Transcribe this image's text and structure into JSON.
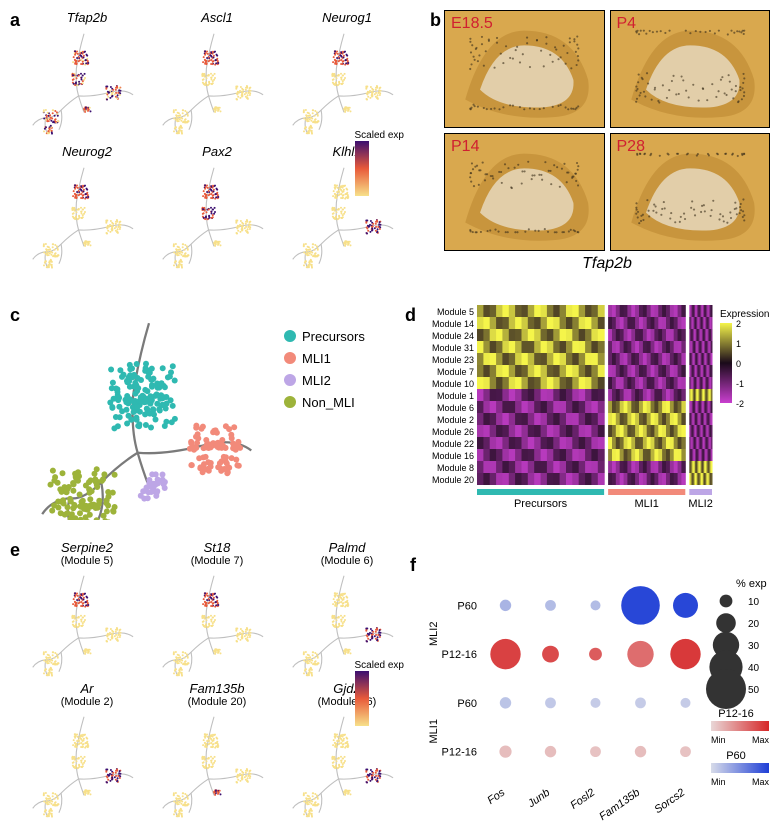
{
  "panel_a": {
    "label": "a",
    "genes": [
      "Tfap2b",
      "Ascl1",
      "Neurog1",
      "Neurog2",
      "Pax2",
      "Klhl1"
    ],
    "gene_high_branch": [
      "all",
      "top",
      "top",
      "top",
      "upper",
      "right"
    ],
    "legend_label": "Scaled exp",
    "colormap_low": "#f7e08a",
    "colormap_mid": "#e85a3a",
    "colormap_high": "#3b0f70",
    "skeleton_color": "#bfbfbf",
    "title_fontsize": 13
  },
  "panel_b": {
    "label": "b",
    "stages": [
      "E18.5",
      "P4",
      "P14",
      "P28"
    ],
    "gene": "Tfap2b",
    "border_color": "#000000",
    "bg_color": "#d9a84e",
    "ish_ink": "#3a2f1a",
    "label_color": "#d02030",
    "label_fontsize": 16
  },
  "panel_c": {
    "label": "c",
    "categories": [
      {
        "name": "Precursors",
        "color": "#2fb9b1"
      },
      {
        "name": "MLI1",
        "color": "#f28a7a"
      },
      {
        "name": "MLI2",
        "color": "#bda6e6"
      },
      {
        "name": "Non_MLI",
        "color": "#9db33a"
      }
    ],
    "skeleton_color": "#7a7a7a",
    "legend_fontsize": 13
  },
  "panel_d": {
    "label": "d",
    "modules": [
      "Module 5",
      "Module 14",
      "Module 24",
      "Module 31",
      "Module 23",
      "Module 7",
      "Module 10",
      "Module 1",
      "Module 6",
      "Module 2",
      "Module 26",
      "Module 22",
      "Module 16",
      "Module 8",
      "Module 20"
    ],
    "columns": [
      "Precursors",
      "MLI1",
      "MLI2"
    ],
    "column_colors": {
      "Precursors": "#2fb9b1",
      "MLI1": "#f28a7a",
      "MLI2": "#bda6e6"
    },
    "column_widths": [
      0.56,
      0.34,
      0.1
    ],
    "legend_label": "Expression",
    "cmap_low": "#c93fcf",
    "cmap_mid": "#1a0a1a",
    "cmap_high": "#f5f54a",
    "scale_ticks": [
      2,
      1,
      0,
      -1,
      -2
    ],
    "module_high_col": [
      0,
      0,
      0,
      0,
      0,
      0,
      0,
      2,
      1,
      1,
      1,
      1,
      1,
      2,
      2
    ],
    "label_fontsize": 9
  },
  "panel_e": {
    "label": "e",
    "items": [
      {
        "gene": "Serpine2",
        "module": "(Module 5)",
        "high": "top"
      },
      {
        "gene": "St18",
        "module": "(Module 7)",
        "high": "top"
      },
      {
        "gene": "Palmd",
        "module": "(Module 6)",
        "high": "right"
      },
      {
        "gene": "Ar",
        "module": "(Module 2)",
        "high": "right"
      },
      {
        "gene": "Fam135b",
        "module": "(Module 20)",
        "high": "rightdot"
      },
      {
        "gene": "Gjd2",
        "module": "(Module 26)",
        "high": "right"
      }
    ],
    "legend_label": "Scaled exp",
    "colormap_low": "#f7e08a",
    "colormap_mid": "#e85a3a",
    "colormap_high": "#3b0f70",
    "skeleton_color": "#bfbfbf",
    "title_fontsize": 13
  },
  "panel_f": {
    "label": "f",
    "y_groups": [
      "MLI2",
      "MLI1"
    ],
    "y_sub": [
      "P60",
      "P12-16"
    ],
    "x_genes": [
      "Fos",
      "Junb",
      "Fosl2",
      "Fam135b",
      "Sorcs2"
    ],
    "size_legend_label": "% exp",
    "size_legend_values": [
      10,
      20,
      30,
      40,
      50
    ],
    "color_red_label": "P12-16",
    "color_blue_label": "P60",
    "red_low": "#e9d7d7",
    "red_high": "#d62728",
    "blue_low": "#d7dbe9",
    "blue_high": "#1f3fd6",
    "dot_data": [
      {
        "group": "MLI2",
        "stage": "P60",
        "gene": "Fos",
        "pct": 8,
        "val": 0.25
      },
      {
        "group": "MLI2",
        "stage": "P60",
        "gene": "Junb",
        "pct": 7,
        "val": 0.2
      },
      {
        "group": "MLI2",
        "stage": "P60",
        "gene": "Fosl2",
        "pct": 6,
        "val": 0.2
      },
      {
        "group": "MLI2",
        "stage": "P60",
        "gene": "Fam135b",
        "pct": 48,
        "val": 0.95
      },
      {
        "group": "MLI2",
        "stage": "P60",
        "gene": "Sorcs2",
        "pct": 28,
        "val": 0.95
      },
      {
        "group": "MLI2",
        "stage": "P12-16",
        "gene": "Fos",
        "pct": 36,
        "val": 0.85
      },
      {
        "group": "MLI2",
        "stage": "P12-16",
        "gene": "Junb",
        "pct": 16,
        "val": 0.8
      },
      {
        "group": "MLI2",
        "stage": "P12-16",
        "gene": "Fosl2",
        "pct": 10,
        "val": 0.7
      },
      {
        "group": "MLI2",
        "stage": "P12-16",
        "gene": "Fam135b",
        "pct": 30,
        "val": 0.6
      },
      {
        "group": "MLI2",
        "stage": "P12-16",
        "gene": "Sorcs2",
        "pct": 36,
        "val": 0.9
      },
      {
        "group": "MLI1",
        "stage": "P60",
        "gene": "Fos",
        "pct": 8,
        "val": 0.15
      },
      {
        "group": "MLI1",
        "stage": "P60",
        "gene": "Junb",
        "pct": 7,
        "val": 0.12
      },
      {
        "group": "MLI1",
        "stage": "P60",
        "gene": "Fosl2",
        "pct": 6,
        "val": 0.1
      },
      {
        "group": "MLI1",
        "stage": "P60",
        "gene": "Fam135b",
        "pct": 7,
        "val": 0.1
      },
      {
        "group": "MLI1",
        "stage": "P60",
        "gene": "Sorcs2",
        "pct": 6,
        "val": 0.1
      },
      {
        "group": "MLI1",
        "stage": "P12-16",
        "gene": "Fos",
        "pct": 9,
        "val": 0.15
      },
      {
        "group": "MLI1",
        "stage": "P12-16",
        "gene": "Junb",
        "pct": 8,
        "val": 0.15
      },
      {
        "group": "MLI1",
        "stage": "P12-16",
        "gene": "Fosl2",
        "pct": 7,
        "val": 0.12
      },
      {
        "group": "MLI1",
        "stage": "P12-16",
        "gene": "Fam135b",
        "pct": 8,
        "val": 0.15
      },
      {
        "group": "MLI1",
        "stage": "P12-16",
        "gene": "Sorcs2",
        "pct": 7,
        "val": 0.12
      }
    ],
    "min_label": "Min",
    "max_label": "Max",
    "axis_fontsize": 11
  }
}
